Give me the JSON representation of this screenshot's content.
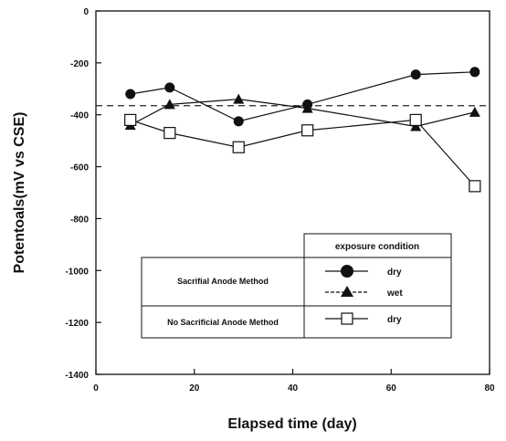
{
  "chart_data": {
    "type": "line",
    "xlabel": "Elapsed time (day)",
    "ylabel": "Potentoals(mV vs CSE)",
    "xlim": [
      0,
      80
    ],
    "ylim": [
      -1400,
      0
    ],
    "xticks": [
      0,
      20,
      40,
      60,
      80
    ],
    "xtick_labels": [
      "0",
      "20",
      "40",
      "60",
      "80"
    ],
    "yticks": [
      0,
      -200,
      -400,
      -600,
      -800,
      -1000,
      -1200,
      -1400
    ],
    "ytick_labels": [
      "0",
      "-200",
      "-400",
      "-600",
      "-800",
      "-1000",
      "-1200",
      "-1400"
    ],
    "reference_line": {
      "y": -365,
      "style": "dashed"
    },
    "series": [
      {
        "name": "dry",
        "group": "Sacrifial Anode Method",
        "marker": "circle",
        "x": [
          7,
          15,
          29,
          43,
          65,
          77
        ],
        "values": [
          -320,
          -295,
          -425,
          -360,
          -245,
          -235
        ]
      },
      {
        "name": "wet",
        "group": "Sacrifial Anode Method",
        "marker": "triangle",
        "x": [
          7,
          15,
          29,
          43,
          65,
          77
        ],
        "values": [
          -440,
          -360,
          -340,
          -375,
          -445,
          -390
        ]
      },
      {
        "name": "dry",
        "group": "No Sacrificial Anode Method",
        "marker": "open-square",
        "x": [
          7,
          15,
          29,
          43,
          65,
          77
        ],
        "values": [
          -420,
          -470,
          -525,
          -460,
          -420,
          -675
        ]
      }
    ],
    "legend": {
      "title": "exposure condition",
      "placement": "bottom-center",
      "groups": [
        "Sacrifial Anode Method",
        "No Sacrificial Anode Method"
      ]
    }
  }
}
